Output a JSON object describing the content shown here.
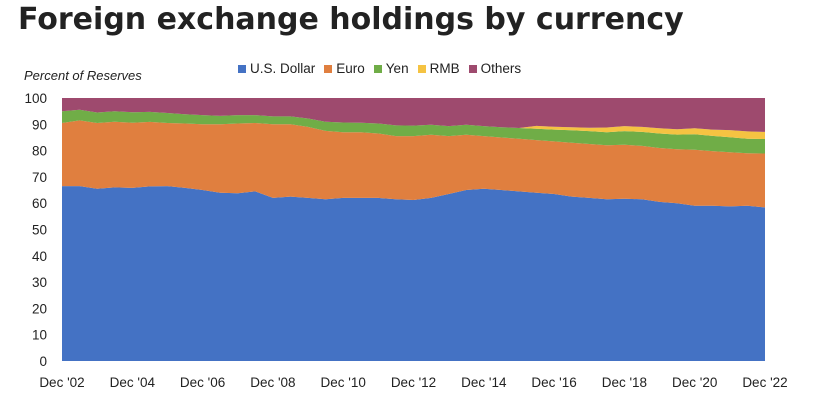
{
  "chart_data": {
    "type": "area",
    "stacked": true,
    "title": "Foreign exchange holdings by currency",
    "xlabel": "",
    "ylabel": "Percent of Reserves",
    "ylim": [
      0,
      100
    ],
    "yticks": [
      0,
      10,
      20,
      30,
      40,
      50,
      60,
      70,
      80,
      90,
      100
    ],
    "xlim": [
      2002.75,
      2022.75
    ],
    "xticks": [
      {
        "x": 2002.75,
        "label": "Dec '02"
      },
      {
        "x": 2004.75,
        "label": "Dec '04"
      },
      {
        "x": 2006.75,
        "label": "Dec '06"
      },
      {
        "x": 2008.75,
        "label": "Dec '08"
      },
      {
        "x": 2010.75,
        "label": "Dec '10"
      },
      {
        "x": 2012.75,
        "label": "Dec '12"
      },
      {
        "x": 2014.75,
        "label": "Dec '14"
      },
      {
        "x": 2016.75,
        "label": "Dec '16"
      },
      {
        "x": 2018.75,
        "label": "Dec '18"
      },
      {
        "x": 2020.75,
        "label": "Dec '20"
      },
      {
        "x": 2022.75,
        "label": "Dec '22"
      }
    ],
    "grid": false,
    "legend_position": "top",
    "x": [
      2002.75,
      2003.25,
      2003.75,
      2004.25,
      2004.75,
      2005.25,
      2005.75,
      2006.25,
      2006.75,
      2007.25,
      2007.75,
      2008.25,
      2008.75,
      2009.25,
      2009.75,
      2010.25,
      2010.75,
      2011.25,
      2011.75,
      2012.25,
      2012.75,
      2013.25,
      2013.75,
      2014.25,
      2014.75,
      2015.25,
      2015.75,
      2016.25,
      2016.75,
      2017.25,
      2017.75,
      2018.25,
      2018.75,
      2019.25,
      2019.75,
      2020.25,
      2020.75,
      2021.25,
      2021.75,
      2022.25,
      2022.75
    ],
    "series": [
      {
        "name": "U.S. Dollar",
        "color": "#4472c4",
        "values": [
          66.5,
          66.5,
          65.5,
          66.0,
          65.8,
          66.4,
          66.5,
          65.8,
          65.0,
          64.0,
          63.8,
          64.5,
          62.0,
          62.5,
          62.0,
          61.5,
          62.0,
          62.0,
          62.0,
          61.5,
          61.2,
          62.0,
          63.5,
          65.0,
          65.5,
          65.0,
          64.5,
          64.0,
          63.5,
          62.5,
          62.0,
          61.5,
          61.7,
          61.5,
          60.5,
          60.0,
          59.0,
          59.0,
          58.8,
          59.0,
          58.4
        ]
      },
      {
        "name": "Euro",
        "color": "#e07f3f",
        "values": [
          24.0,
          25.0,
          25.0,
          25.0,
          24.8,
          24.5,
          24.0,
          24.5,
          25.0,
          26.0,
          26.5,
          26.0,
          28.0,
          27.5,
          27.0,
          26.0,
          25.0,
          25.0,
          24.5,
          24.0,
          24.3,
          24.0,
          22.0,
          21.0,
          20.0,
          20.0,
          20.0,
          20.0,
          20.0,
          20.5,
          20.5,
          20.5,
          20.5,
          20.3,
          20.5,
          20.5,
          21.3,
          20.8,
          20.6,
          20.0,
          20.5
        ]
      },
      {
        "name": "Yen",
        "color": "#70ad47",
        "values": [
          4.5,
          4.0,
          4.0,
          4.0,
          4.0,
          3.8,
          3.8,
          3.5,
          3.5,
          3.2,
          3.2,
          3.0,
          3.0,
          3.0,
          3.2,
          3.5,
          3.7,
          3.6,
          3.8,
          4.1,
          4.0,
          3.8,
          3.8,
          3.8,
          3.8,
          3.9,
          4.1,
          4.3,
          4.5,
          4.7,
          4.9,
          5.0,
          5.2,
          5.3,
          5.5,
          5.6,
          5.9,
          5.8,
          5.7,
          5.5,
          5.5
        ]
      },
      {
        "name": "RMB",
        "color": "#f5c342",
        "values": [
          0,
          0,
          0,
          0,
          0,
          0,
          0,
          0,
          0,
          0,
          0,
          0,
          0,
          0,
          0,
          0,
          0,
          0,
          0,
          0,
          0,
          0,
          0,
          0,
          0,
          0,
          0,
          1.1,
          1.1,
          1.2,
          1.3,
          1.8,
          1.9,
          1.9,
          2.0,
          2.0,
          2.3,
          2.4,
          2.7,
          2.8,
          2.7
        ]
      },
      {
        "name": "Others",
        "color": "#9e4a6e",
        "values": [
          5.0,
          4.5,
          5.5,
          5.0,
          5.4,
          5.3,
          5.7,
          6.2,
          6.5,
          6.8,
          6.5,
          6.5,
          7.0,
          7.0,
          7.8,
          9.0,
          9.3,
          9.4,
          9.7,
          10.4,
          10.5,
          10.2,
          10.7,
          10.2,
          10.7,
          11.1,
          11.4,
          10.6,
          10.9,
          11.1,
          11.3,
          11.2,
          10.7,
          11.0,
          11.5,
          11.9,
          11.5,
          12.0,
          12.2,
          12.7,
          12.9
        ]
      }
    ]
  }
}
